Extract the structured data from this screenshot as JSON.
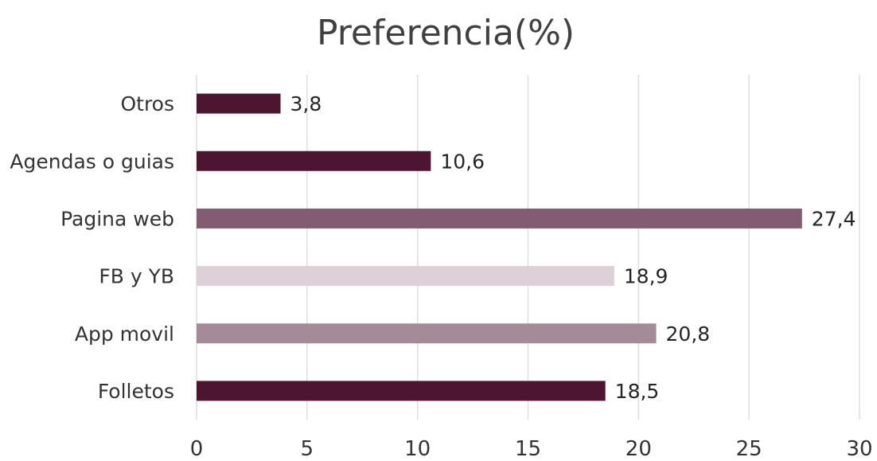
{
  "chart_data": {
    "type": "bar",
    "orientation": "horizontal",
    "title": "Preferencia(%)",
    "xlabel": "",
    "ylabel": "",
    "categories": [
      "Folletos",
      "App movil",
      "FB y YB",
      "Pagina web",
      "Agendas o guias",
      "Otros"
    ],
    "values": [
      18.5,
      20.8,
      18.9,
      27.4,
      10.6,
      3.8
    ],
    "value_labels": [
      "18,5",
      "20,8",
      "18,9",
      "27,4",
      "10,6",
      "3,8"
    ],
    "bar_colors": [
      "#4e1532",
      "#a58b98",
      "#ddd0d7",
      "#825c72",
      "#4e1532",
      "#4e1532"
    ],
    "xlim": [
      0,
      30
    ],
    "x_ticks": [
      0,
      5,
      10,
      15,
      20,
      25,
      30
    ],
    "x_tick_labels": [
      "0",
      "5",
      "10",
      "15",
      "20",
      "25",
      "30"
    ],
    "grid": "vertical",
    "legend": "none"
  }
}
